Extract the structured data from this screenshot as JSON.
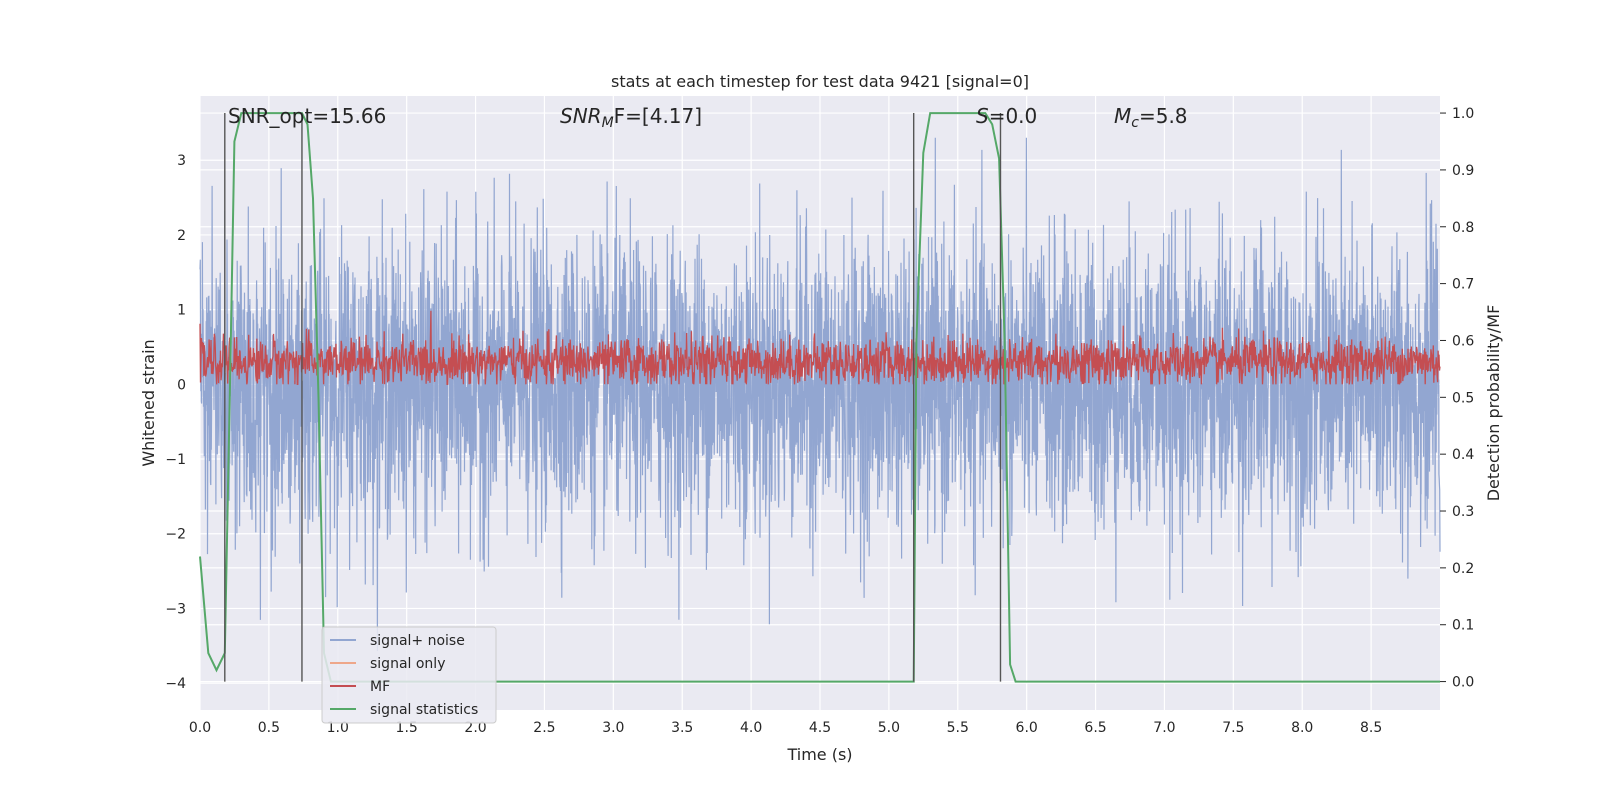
{
  "chart_data": {
    "type": "line",
    "title": "stats at each timestep for test data 9421 [signal=0]",
    "xlabel": "Time (s)",
    "ylabel_left": "Whitened strain",
    "ylabel_right": "Detection probability/MF",
    "xlim": [
      0.0,
      9.0
    ],
    "ylim_left": [
      -4.36,
      3.86
    ],
    "ylim_right": [
      -0.05,
      1.03
    ],
    "xticks": [
      "0.0",
      "0.5",
      "1.0",
      "1.5",
      "2.0",
      "2.5",
      "3.0",
      "3.5",
      "4.0",
      "4.5",
      "5.0",
      "5.5",
      "6.0",
      "6.5",
      "7.0",
      "7.5",
      "8.0",
      "8.5"
    ],
    "yticks_left": [
      "3",
      "2",
      "1",
      "0",
      "−1",
      "−2",
      "−3",
      "−4"
    ],
    "yticks_right": [
      "1.0",
      "0.9",
      "0.8",
      "0.7",
      "0.6",
      "0.5",
      "0.4",
      "0.3",
      "0.2",
      "0.1",
      "0.0"
    ],
    "grid": true,
    "annotations": {
      "snr_opt": "SNR_opt=15.66",
      "snr_mf_sym": "SNR",
      "snr_mf_sub": "M",
      "snr_mf_rest": "F=[4.17]",
      "s_sym": "S",
      "s_val": "=0.0",
      "mc_sym": "M",
      "mc_sub": "c",
      "mc_val": "=5.8"
    },
    "vlines": [
      0.18,
      0.74,
      5.18,
      5.81
    ],
    "series": [
      {
        "name": "signal+ noise",
        "color": "#92a6d1",
        "axis": "left",
        "noise_std": 0.95,
        "peak_max": 3.3,
        "peak_min": -3.9
      },
      {
        "name": "signal only",
        "color": "#eea78a",
        "axis": "left",
        "values": []
      },
      {
        "name": "MF",
        "color": "#c44e52",
        "axis": "left",
        "band_low": 0.0,
        "band_high": 0.6,
        "peak_max": 1.0
      },
      {
        "name": "signal statistics",
        "color": "#55a868",
        "axis": "right",
        "x": [
          0.0,
          0.06,
          0.12,
          0.18,
          0.22,
          0.25,
          0.3,
          0.35,
          0.5,
          0.6,
          0.7,
          0.74,
          0.78,
          0.82,
          0.86,
          0.9,
          0.95,
          1.0,
          5.1,
          5.18,
          5.2,
          5.25,
          5.3,
          5.4,
          5.5,
          5.6,
          5.7,
          5.75,
          5.8,
          5.84,
          5.88,
          5.92,
          6.0,
          9.0
        ],
        "y": [
          0.22,
          0.05,
          0.02,
          0.05,
          0.55,
          0.95,
          1.0,
          1.0,
          1.0,
          1.0,
          1.0,
          1.0,
          0.98,
          0.85,
          0.5,
          0.05,
          0.0,
          0.0,
          0.0,
          0.0,
          0.6,
          0.93,
          1.0,
          1.0,
          1.0,
          1.0,
          1.0,
          0.98,
          0.92,
          0.6,
          0.03,
          0.0,
          0.0,
          0.0
        ]
      }
    ]
  }
}
